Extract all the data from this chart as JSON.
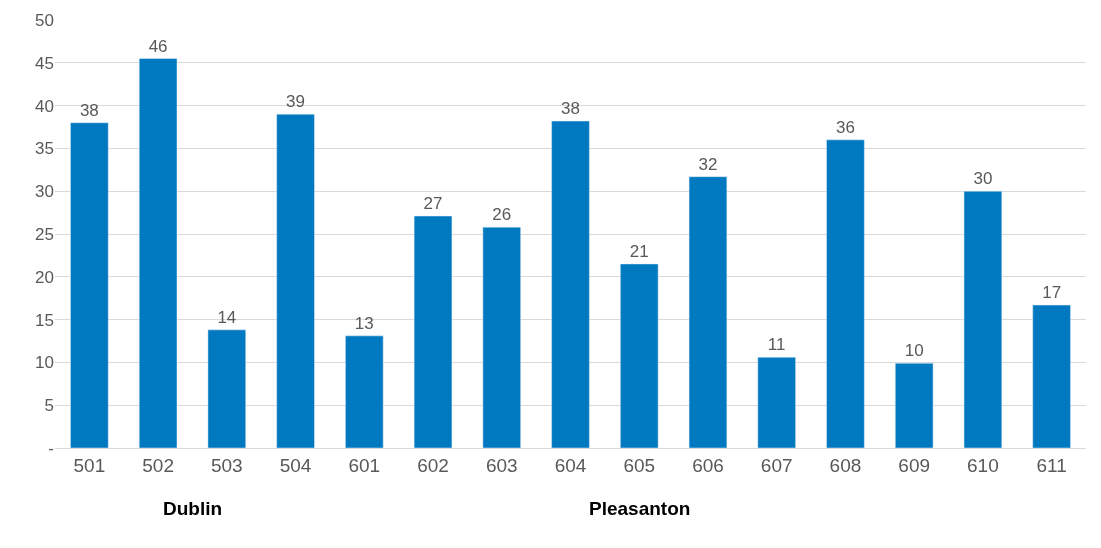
{
  "chart_data": {
    "type": "bar",
    "categories": [
      "501",
      "502",
      "503",
      "504",
      "601",
      "602",
      "603",
      "604",
      "605",
      "606",
      "607",
      "608",
      "609",
      "610",
      "611"
    ],
    "series": [
      {
        "color": "#0079c1",
        "values": [
          38,
          45.5,
          13.8,
          39,
          13.1,
          27.1,
          25.8,
          38.2,
          21.5,
          31.7,
          10.6,
          36,
          9.9,
          30,
          16.7
        ],
        "value_labels": [
          "38",
          "46",
          "14",
          "39",
          "13",
          "27",
          "26",
          "38",
          "21",
          "32",
          "11",
          "36",
          "10",
          "30",
          "17"
        ]
      }
    ],
    "ylim": [
      0,
      50
    ],
    "yticks": [
      {
        "value": 0,
        "label": "-"
      },
      5,
      10,
      15,
      20,
      25,
      30,
      35,
      40,
      45,
      50
    ],
    "grid": "y",
    "annotations": [
      "Dublin",
      "Pleasanton"
    ]
  }
}
